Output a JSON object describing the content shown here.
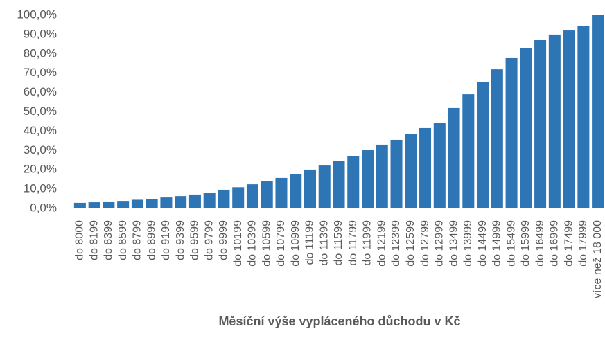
{
  "chart_data": {
    "type": "bar",
    "x_label": "Měsíční výše vypláceného důchodu v Kč",
    "categories": [
      "do 8000",
      "do 8199",
      "do 8399",
      "do 8599",
      "do 8799",
      "do 8999",
      "do 9199",
      "do 9399",
      "do 9599",
      "do 9799",
      "do 9999",
      "do 10199",
      "do 10399",
      "do 10599",
      "do 10799",
      "do 10999",
      "do 11199",
      "do 11399",
      "do 11599",
      "do 11799",
      "do 11999",
      "do 12199",
      "do 12399",
      "do 12599",
      "do 12799",
      "do 12999",
      "do 13499",
      "do 13999",
      "do 14499",
      "do 14999",
      "do 15499",
      "do 15999",
      "do 16499",
      "do 16999",
      "do 17499",
      "do 17999",
      "více než 18 000"
    ],
    "values": [
      2.9,
      3.2,
      3.6,
      3.9,
      4.5,
      5.0,
      5.7,
      6.4,
      7.2,
      8.2,
      9.7,
      11.0,
      12.5,
      14.0,
      15.8,
      17.9,
      20.1,
      22.2,
      24.7,
      27.2,
      30.1,
      33.0,
      35.5,
      38.7,
      41.6,
      44.4,
      52.0,
      59.1,
      65.6,
      72.0,
      77.8,
      82.8,
      87.1,
      90.0,
      92.1,
      94.6,
      100
    ],
    "color": "#2e75b6",
    "ylim": [
      0,
      100
    ],
    "yticks": [
      {
        "value": 0,
        "label": "0,0%"
      },
      {
        "value": 10,
        "label": "10,0%"
      },
      {
        "value": 20,
        "label": "20,0%"
      },
      {
        "value": 30,
        "label": "30,0%"
      },
      {
        "value": 40,
        "label": "40,0%"
      },
      {
        "value": 50,
        "label": "50,0%"
      },
      {
        "value": 60,
        "label": "60,0%"
      },
      {
        "value": 70,
        "label": "70,0%"
      },
      {
        "value": 80,
        "label": "80,0%"
      },
      {
        "value": 90,
        "label": "90,0%"
      },
      {
        "value": 100,
        "label": "100,0%"
      }
    ],
    "grid": false
  }
}
